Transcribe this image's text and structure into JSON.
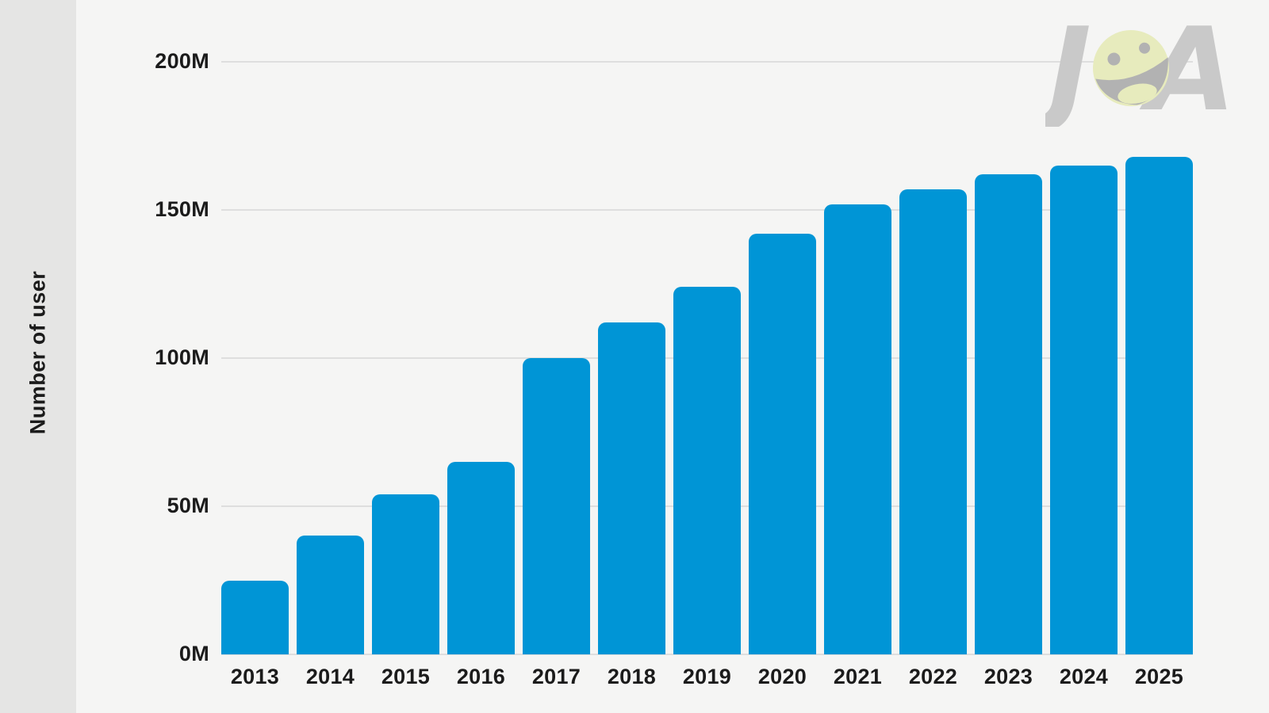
{
  "colors": {
    "background": "#f5f5f4",
    "left_strip": "#e5e5e4",
    "gridline": "#dedede",
    "bar": "#0095d6",
    "text": "#1b1b1b",
    "logo_letters": "#c9c9c9",
    "logo_face": "#e7ebbd",
    "logo_features": "#b2b2b2"
  },
  "y_axis": {
    "title": "Number of user",
    "ticks": [
      {
        "label": "0M",
        "value": 0
      },
      {
        "label": "50M",
        "value": 50
      },
      {
        "label": "100M",
        "value": 100
      },
      {
        "label": "150M",
        "value": 150
      },
      {
        "label": "200M",
        "value": 200
      }
    ]
  },
  "logo": {
    "letter_left": "J",
    "letter_right": "A"
  },
  "chart_data": {
    "type": "bar",
    "title": "",
    "xlabel": "",
    "ylabel": "Number of user",
    "categories": [
      "2013",
      "2014",
      "2015",
      "2016",
      "2017",
      "2018",
      "2019",
      "2020",
      "2021",
      "2022",
      "2023",
      "2024",
      "2025"
    ],
    "values": [
      25,
      40,
      54,
      65,
      100,
      112,
      124,
      142,
      152,
      157,
      162,
      165,
      168
    ],
    "unit": "M",
    "ylim": [
      0,
      200
    ],
    "yticks": [
      0,
      50,
      100,
      150,
      200
    ],
    "grid": true,
    "legend": false,
    "bar_color": "#0095d6"
  }
}
